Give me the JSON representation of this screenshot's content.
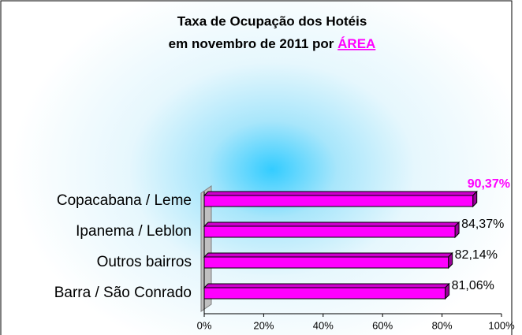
{
  "chart_data": {
    "type": "bar3d_horizontal",
    "title": [
      "Taxa de Ocupação dos Hotéis",
      "em novembro de 2011 por"
    ],
    "title_highlight": "ÁREA",
    "categories": [
      "Copacabana / Leme",
      "Ipanema / Leblon",
      "Outros bairros",
      "Barra / São Conrado"
    ],
    "values": [
      90.37,
      84.37,
      82.14,
      81.06
    ],
    "value_labels": [
      "90,37%",
      "84,37%",
      "82,14%",
      "81,06%"
    ],
    "color": "#ff00ff",
    "xlim": [
      0,
      100
    ],
    "xticks": [
      {
        "value": 0,
        "label": "0%"
      },
      {
        "value": 20,
        "label": "20%"
      },
      {
        "value": 40,
        "label": "40%"
      },
      {
        "value": 60,
        "label": "60%"
      },
      {
        "value": 80,
        "label": "80%"
      },
      {
        "value": 100,
        "label": "100%"
      }
    ]
  }
}
